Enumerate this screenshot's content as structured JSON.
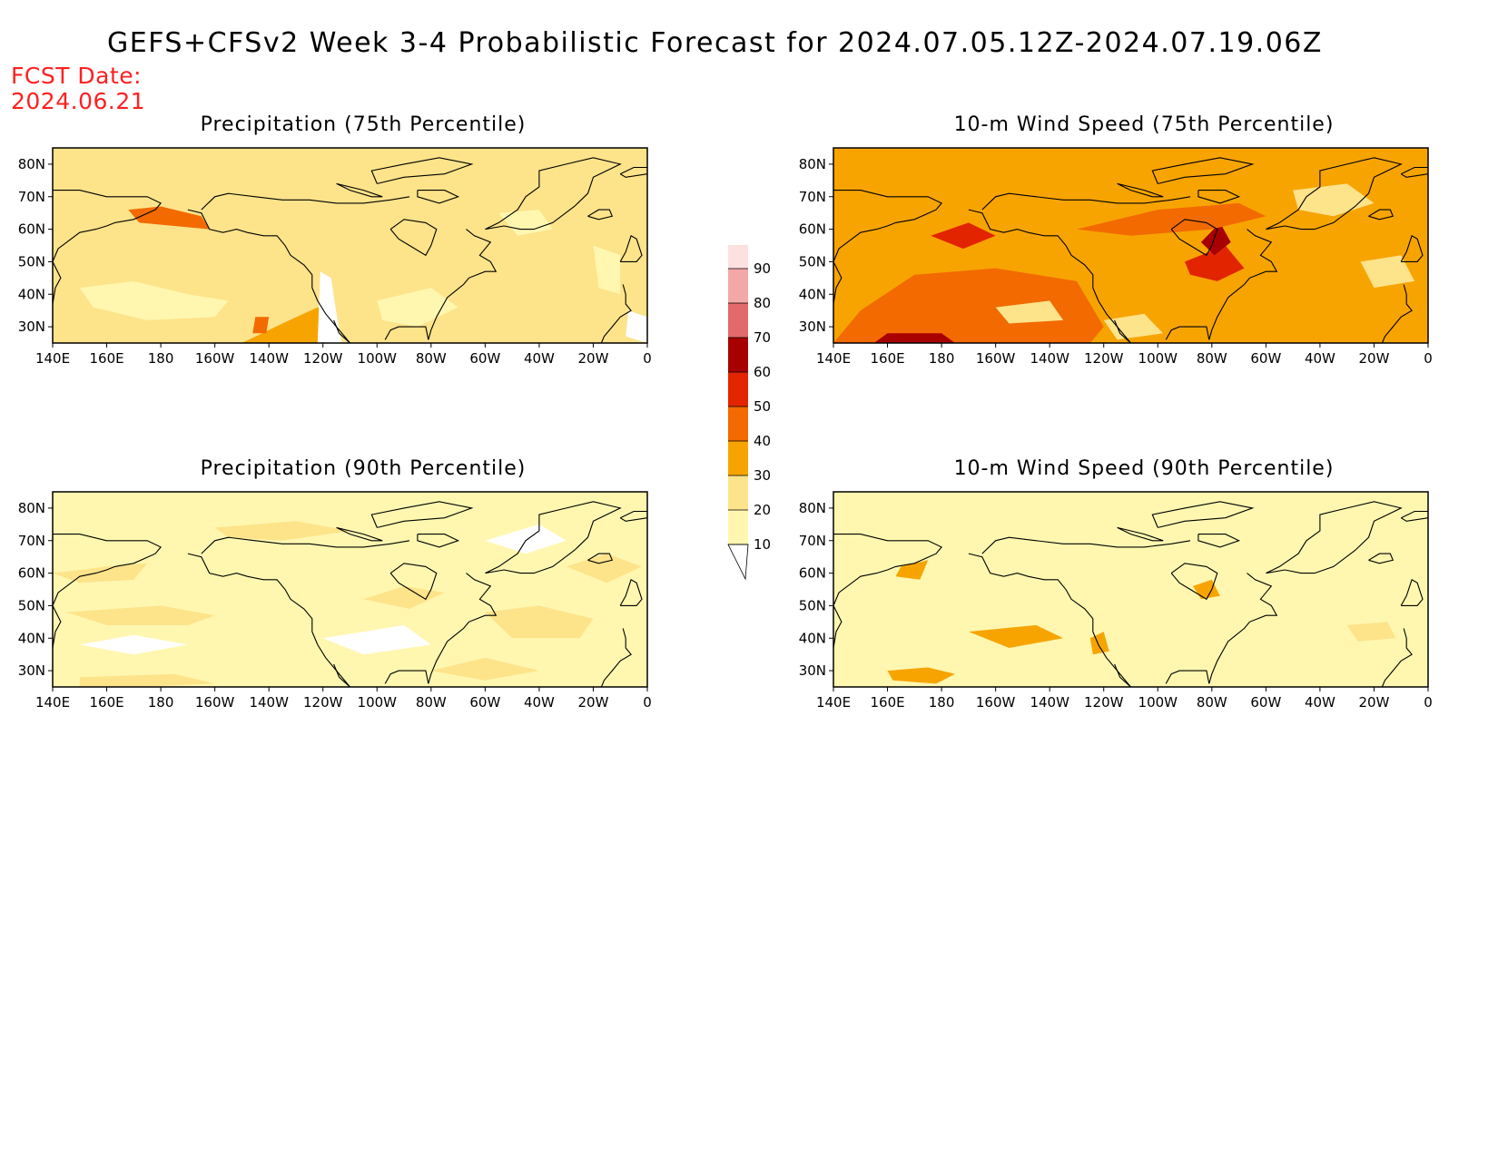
{
  "title": "GEFS+CFSv2 Week 3-4 Probabilistic Forecast for 2024.07.05.12Z-2024.07.19.06Z",
  "fcst_label": "FCST Date:",
  "fcst_date": "2024.06.21",
  "lat_labels": [
    "80N",
    "70N",
    "60N",
    "50N",
    "40N",
    "30N"
  ],
  "lon_labels": [
    "140E",
    "160E",
    "180",
    "160W",
    "140W",
    "120W",
    "100W",
    "80W",
    "60W",
    "40W",
    "20W",
    "0"
  ],
  "panels": [
    {
      "title": "Precipitation (75th Percentile)",
      "base_level": 20
    },
    {
      "title": "10-m Wind Speed (75th Percentile)",
      "base_level": 30
    },
    {
      "title": "Precipitation (90th Percentile)",
      "base_level": 10
    },
    {
      "title": "10-m Wind Speed (90th Percentile)",
      "base_level": 10
    }
  ],
  "colorbar": {
    "levels": [
      "10",
      "20",
      "30",
      "40",
      "50",
      "60",
      "70",
      "80",
      "90"
    ],
    "colors": [
      "#ffffff",
      "#fff7b0",
      "#fde38a",
      "#f7a400",
      "#f26a00",
      "#e22400",
      "#a80000",
      "#e36a6a",
      "#f3a8a8",
      "#fde0e0"
    ]
  },
  "colors": {
    "fcst_date": "#ff2020",
    "coastline": "#000000"
  }
}
